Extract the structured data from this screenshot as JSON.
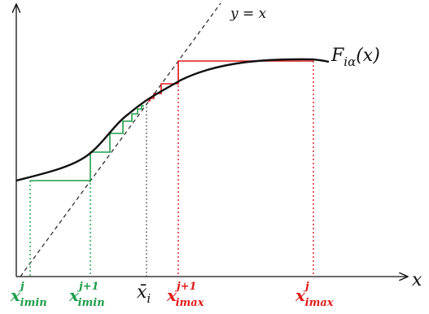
{
  "labels": {
    "curve": "F",
    "curve_sub": "iα",
    "curve_arg": "(x)",
    "identity_line": "y = x",
    "x_axis": "x",
    "fixed_point_base": "x̄",
    "fixed_point_sub": "i",
    "x_imin_j_base": "x",
    "x_imin_j_sup": "j",
    "x_imin_j_sub": "imin",
    "x_imin_j1_base": "x",
    "x_imin_j1_sup": "j+1",
    "x_imin_j1_sub": "imin",
    "x_imax_j1_base": "x",
    "x_imax_j1_sup": "j+1",
    "x_imax_j1_sub": "imax",
    "x_imax_j_base": "x",
    "x_imax_j_sup": "j",
    "x_imax_j_sub": "imax"
  },
  "colors": {
    "axis": "#111111",
    "curve": "#111111",
    "identity": "#222222",
    "green": "#1e9e4a",
    "red": "#e01b1b",
    "fixed_point": "#333333"
  }
}
